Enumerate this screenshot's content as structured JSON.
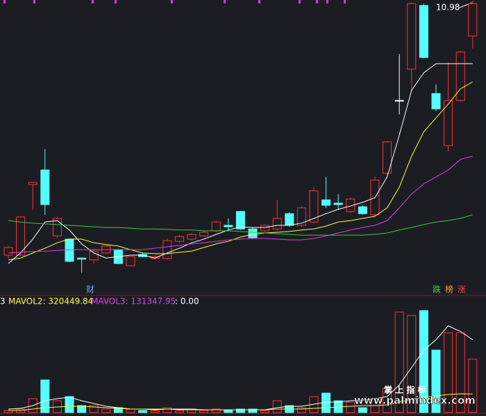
{
  "chart_data": [
    {
      "type": "candlestick",
      "ylim": [
        3,
        11
      ],
      "up_color": "#ff3232",
      "down_color": "#54ffff",
      "flat_color": "#ffffff",
      "open": [
        3.99,
        3.99,
        5.93,
        6.33,
        4.52,
        4.43,
        3.91,
        3.86,
        4.05,
        4.14,
        3.7,
        4.01,
        3.9,
        3.9,
        4.37,
        4.43,
        4.52,
        4.66,
        4.81,
        5.19,
        4.71,
        4.66,
        4.71,
        5.13,
        4.81,
        4.9,
        5.51,
        5.42,
        5.19,
        5.32,
        5.1,
        6.24,
        8.24,
        9.1,
        10.85,
        8.43,
        7.0,
        8.24,
        10.01
      ],
      "high": [
        4.24,
        5.06,
        5.99,
        6.9,
        5.04,
        4.45,
        3.93,
        4.16,
        4.28,
        4.16,
        3.97,
        4.05,
        3.99,
        4.45,
        4.54,
        4.6,
        4.65,
        4.94,
        5.0,
        5.21,
        4.75,
        4.84,
        5.51,
        5.17,
        5.33,
        5.86,
        6.14,
        5.67,
        5.57,
        5.36,
        6.14,
        7.14,
        9.51,
        10.94,
        10.9,
        8.68,
        9.29,
        9.61,
        10.98
      ],
      "low": [
        3.91,
        3.97,
        5.23,
        5.1,
        4.46,
        3.8,
        3.51,
        3.76,
        4.02,
        3.74,
        3.68,
        3.93,
        3.86,
        3.86,
        4.33,
        4.39,
        4.5,
        4.62,
        4.66,
        4.68,
        4.43,
        4.62,
        4.66,
        4.77,
        4.77,
        4.86,
        5.29,
        5.23,
        5.15,
        5.1,
        5.06,
        6.2,
        7.86,
        8.52,
        9.4,
        7.95,
        6.85,
        8.2,
        9.67
      ],
      "close": [
        4.2,
        5.04,
        5.99,
        5.38,
        5.0,
        3.82,
        3.88,
        4.1,
        4.24,
        3.76,
        3.95,
        3.95,
        3.95,
        4.39,
        4.5,
        4.56,
        4.62,
        4.9,
        4.77,
        4.71,
        4.47,
        4.81,
        5.0,
        4.81,
        5.29,
        5.76,
        5.36,
        5.38,
        5.53,
        5.13,
        6.05,
        7.1,
        8.24,
        10.9,
        9.42,
        8.01,
        8.24,
        9.57,
        10.9
      ],
      "series": [
        {
          "color": "#ffffff",
          "values": [
            3.76,
            4.05,
            4.43,
            4.9,
            4.94,
            4.68,
            4.3,
            4.05,
            3.91,
            3.95,
            3.99,
            3.99,
            3.91,
            4.05,
            4.18,
            4.33,
            4.43,
            4.56,
            4.68,
            4.77,
            4.75,
            4.75,
            4.81,
            4.81,
            4.87,
            5.0,
            5.13,
            5.25,
            5.34,
            5.44,
            5.57,
            6.14,
            7.29,
            8.52,
            9.0,
            9.25,
            9.25,
            9.25,
            9.25
          ]
        },
        {
          "color": "#ffff3c",
          "values": [
            3.86,
            3.91,
            4.05,
            4.18,
            4.33,
            4.43,
            4.43,
            4.33,
            4.28,
            4.24,
            4.14,
            4.05,
            4.03,
            4.03,
            4.07,
            4.1,
            4.2,
            4.3,
            4.37,
            4.49,
            4.56,
            4.6,
            4.62,
            4.64,
            4.68,
            4.71,
            4.79,
            4.9,
            4.94,
            5.0,
            5.06,
            5.29,
            5.86,
            6.71,
            7.38,
            7.76,
            8.14,
            8.56,
            8.75
          ]
        },
        {
          "color": "#e23ce2",
          "values": [
            4.05,
            4.07,
            4.09,
            4.1,
            4.12,
            4.14,
            4.14,
            4.14,
            4.14,
            4.14,
            4.14,
            4.14,
            4.18,
            4.22,
            4.26,
            4.3,
            4.33,
            4.37,
            4.41,
            4.43,
            4.45,
            4.45,
            4.43,
            4.41,
            4.41,
            4.45,
            4.52,
            4.6,
            4.68,
            4.75,
            4.81,
            4.94,
            5.29,
            5.67,
            5.95,
            6.14,
            6.33,
            6.62,
            6.71
          ]
        },
        {
          "color": "#3cc83c",
          "values": [
            4.94,
            4.9,
            4.87,
            4.85,
            4.83,
            4.81,
            4.79,
            4.77,
            4.75,
            4.75,
            4.73,
            4.71,
            4.71,
            4.7,
            4.68,
            4.68,
            4.66,
            4.66,
            4.66,
            4.64,
            4.62,
            4.6,
            4.58,
            4.56,
            4.54,
            4.54,
            4.54,
            4.54,
            4.54,
            4.54,
            4.56,
            4.6,
            4.68,
            4.75,
            4.83,
            4.9,
            4.94,
            5.0,
            5.1
          ]
        }
      ],
      "annotations": [
        "财",
        "跌",
        "榜",
        "涨"
      ]
    },
    {
      "type": "volume",
      "ylim": [
        0,
        1980000
      ],
      "header": [
        "3",
        "MAVOL2: 320449.84",
        "MAVOL3: 131347.95",
        ": 0.00"
      ],
      "values": [
        36000,
        60000,
        240000,
        564000,
        204000,
        276000,
        120000,
        120000,
        60000,
        84000,
        60000,
        36000,
        36000,
        84000,
        36000,
        60000,
        36000,
        60000,
        36000,
        60000,
        60000,
        36000,
        204000,
        120000,
        84000,
        276000,
        336000,
        204000,
        180000,
        84000,
        240000,
        420000,
        1740000,
        1680000,
        1764000,
        1080000,
        1380000,
        1380000,
        924000
      ],
      "series": [
        {
          "color": "#ffffff",
          "values": [
            60000,
            72000,
            120000,
            204000,
            240000,
            264000,
            204000,
            156000,
            108000,
            84000,
            60000,
            60000,
            48000,
            60000,
            60000,
            60000,
            48000,
            48000,
            48000,
            48000,
            48000,
            48000,
            84000,
            108000,
            108000,
            144000,
            180000,
            180000,
            204000,
            216000,
            240000,
            276000,
            480000,
            780000,
            1080000,
            1260000,
            1500000,
            1404000,
            1260000
          ]
        },
        {
          "color": "#ffff3c",
          "values": [
            36000,
            36000,
            60000,
            84000,
            96000,
            108000,
            108000,
            96000,
            84000,
            72000,
            60000,
            60000,
            60000,
            60000,
            48000,
            48000,
            48000,
            48000,
            48000,
            48000,
            48000,
            48000,
            60000,
            60000,
            60000,
            72000,
            84000,
            96000,
            108000,
            120000,
            120000,
            132000,
            180000,
            228000,
            264000,
            288000,
            312000,
            324000,
            320449.84
          ]
        }
      ],
      "watermark": [
        "掌 上 指 标",
        "www.palmindex.com"
      ]
    }
  ]
}
